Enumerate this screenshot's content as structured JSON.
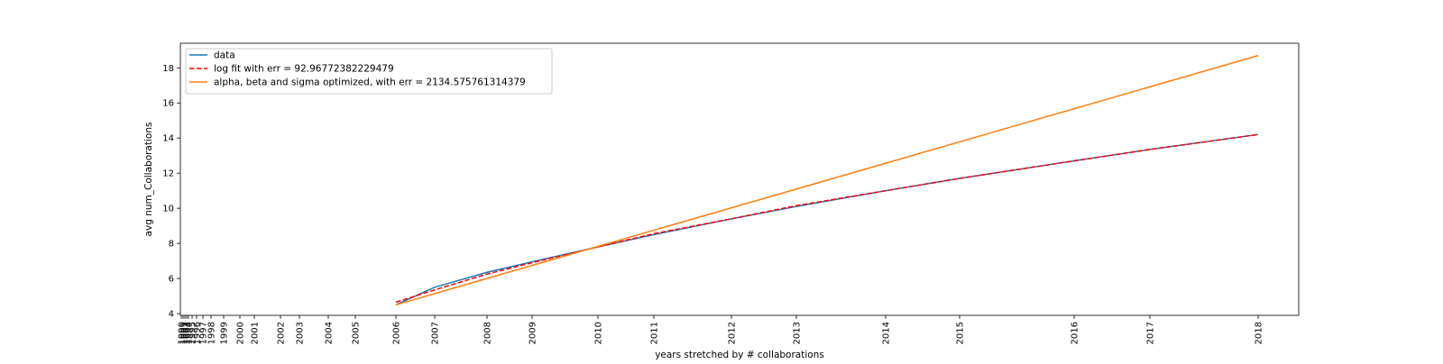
{
  "chart_data": {
    "type": "line",
    "xlabel": "years stretched by # collaborations",
    "ylabel": "avg num_Collaborations",
    "ylim": [
      3.9,
      19.4
    ],
    "yticks": [
      4,
      6,
      8,
      10,
      12,
      14,
      16,
      18
    ],
    "x_tick_labels": [
      "1990",
      "1991",
      "1992",
      "1993",
      "1994",
      "1995",
      "1996",
      "1997",
      "1998",
      "1999",
      "2000",
      "2001",
      "2002",
      "2003",
      "2004",
      "2005",
      "2006",
      "2007",
      "2008",
      "2009",
      "2010",
      "2011",
      "2012",
      "2013",
      "2014",
      "2015",
      "2016",
      "2017",
      "2018"
    ],
    "grid": false,
    "legend_position": "upper-left",
    "series": [
      {
        "name": "data",
        "color": "#1f77b4",
        "style": "solid",
        "points": [
          [
            "2006",
            4.5
          ],
          [
            "2007",
            5.5
          ],
          [
            "2008",
            6.35
          ],
          [
            "2009",
            6.95
          ],
          [
            "2010",
            7.8
          ],
          [
            "2011",
            8.5
          ],
          [
            "2012",
            9.4
          ],
          [
            "2013",
            10.1
          ],
          [
            "2014",
            11.0
          ],
          [
            "2015",
            11.7
          ],
          [
            "2016",
            12.7
          ],
          [
            "2017",
            13.35
          ],
          [
            "2018",
            14.2
          ]
        ]
      },
      {
        "name": "log fit with err = 92.96772382229479",
        "color": "#ff0000",
        "style": "dashed",
        "points": [
          [
            "2006",
            4.65
          ],
          [
            "2007",
            5.35
          ],
          [
            "2008",
            6.25
          ],
          [
            "2009",
            6.9
          ],
          [
            "2010",
            7.8
          ],
          [
            "2011",
            8.55
          ],
          [
            "2012",
            9.4
          ],
          [
            "2013",
            10.15
          ],
          [
            "2014",
            11.0
          ],
          [
            "2015",
            11.7
          ],
          [
            "2016",
            12.7
          ],
          [
            "2017",
            13.35
          ],
          [
            "2018",
            14.2
          ]
        ]
      },
      {
        "name": "alpha, beta and sigma optimized, with err = 2134.575761314379",
        "color": "#ff7f0e",
        "style": "solid",
        "points": [
          [
            "2006",
            4.5
          ],
          [
            "2018",
            18.7
          ]
        ]
      }
    ]
  }
}
